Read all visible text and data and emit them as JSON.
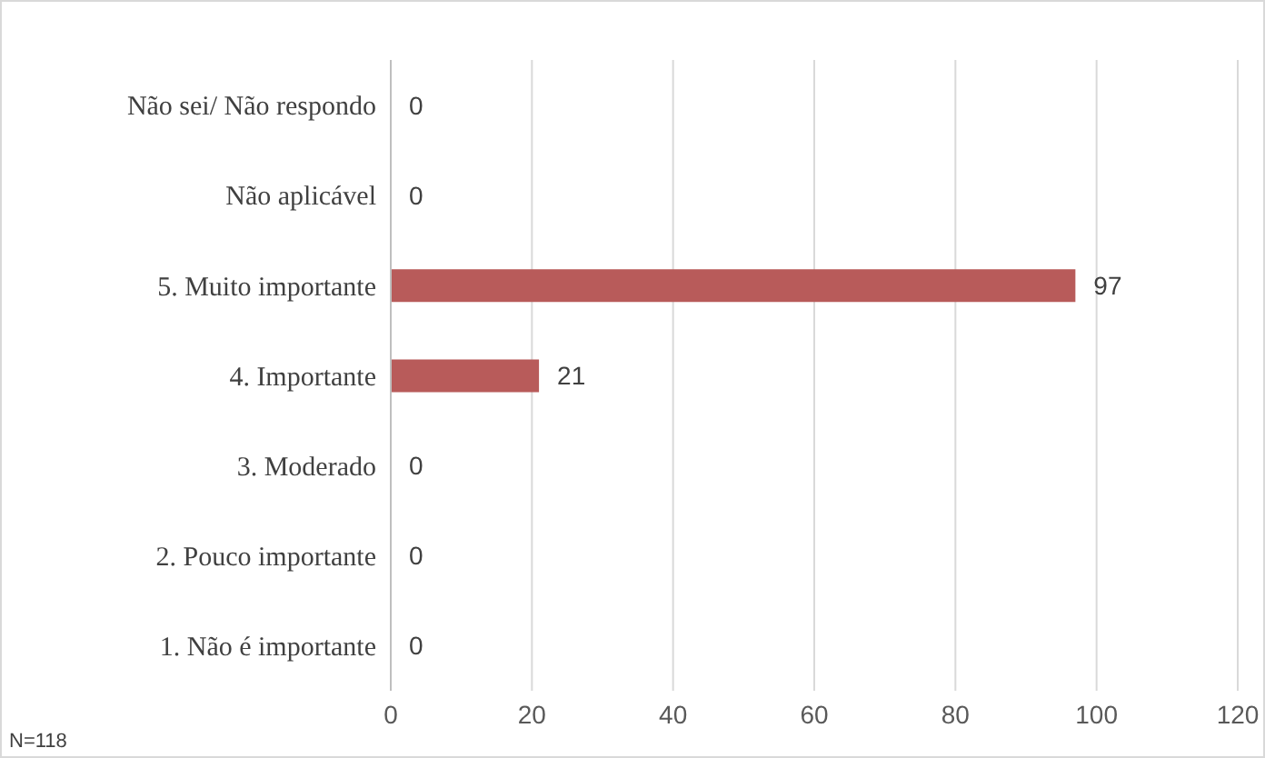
{
  "chart_data": {
    "type": "bar",
    "orientation": "horizontal",
    "categories": [
      "Não sei/ Não respondo",
      "Não aplicável",
      "5. Muito importante",
      "4. Importante",
      "3. Moderado",
      "2. Pouco importante",
      "1. Não é importante"
    ],
    "values": [
      0,
      0,
      97,
      21,
      0,
      0,
      0
    ],
    "color": "#b85b5a",
    "xlim": [
      0,
      120
    ],
    "xticks": [
      0,
      20,
      40,
      60,
      80,
      100,
      120
    ],
    "grid": "x",
    "data_labels": true,
    "annotations": [
      "N=118"
    ]
  }
}
